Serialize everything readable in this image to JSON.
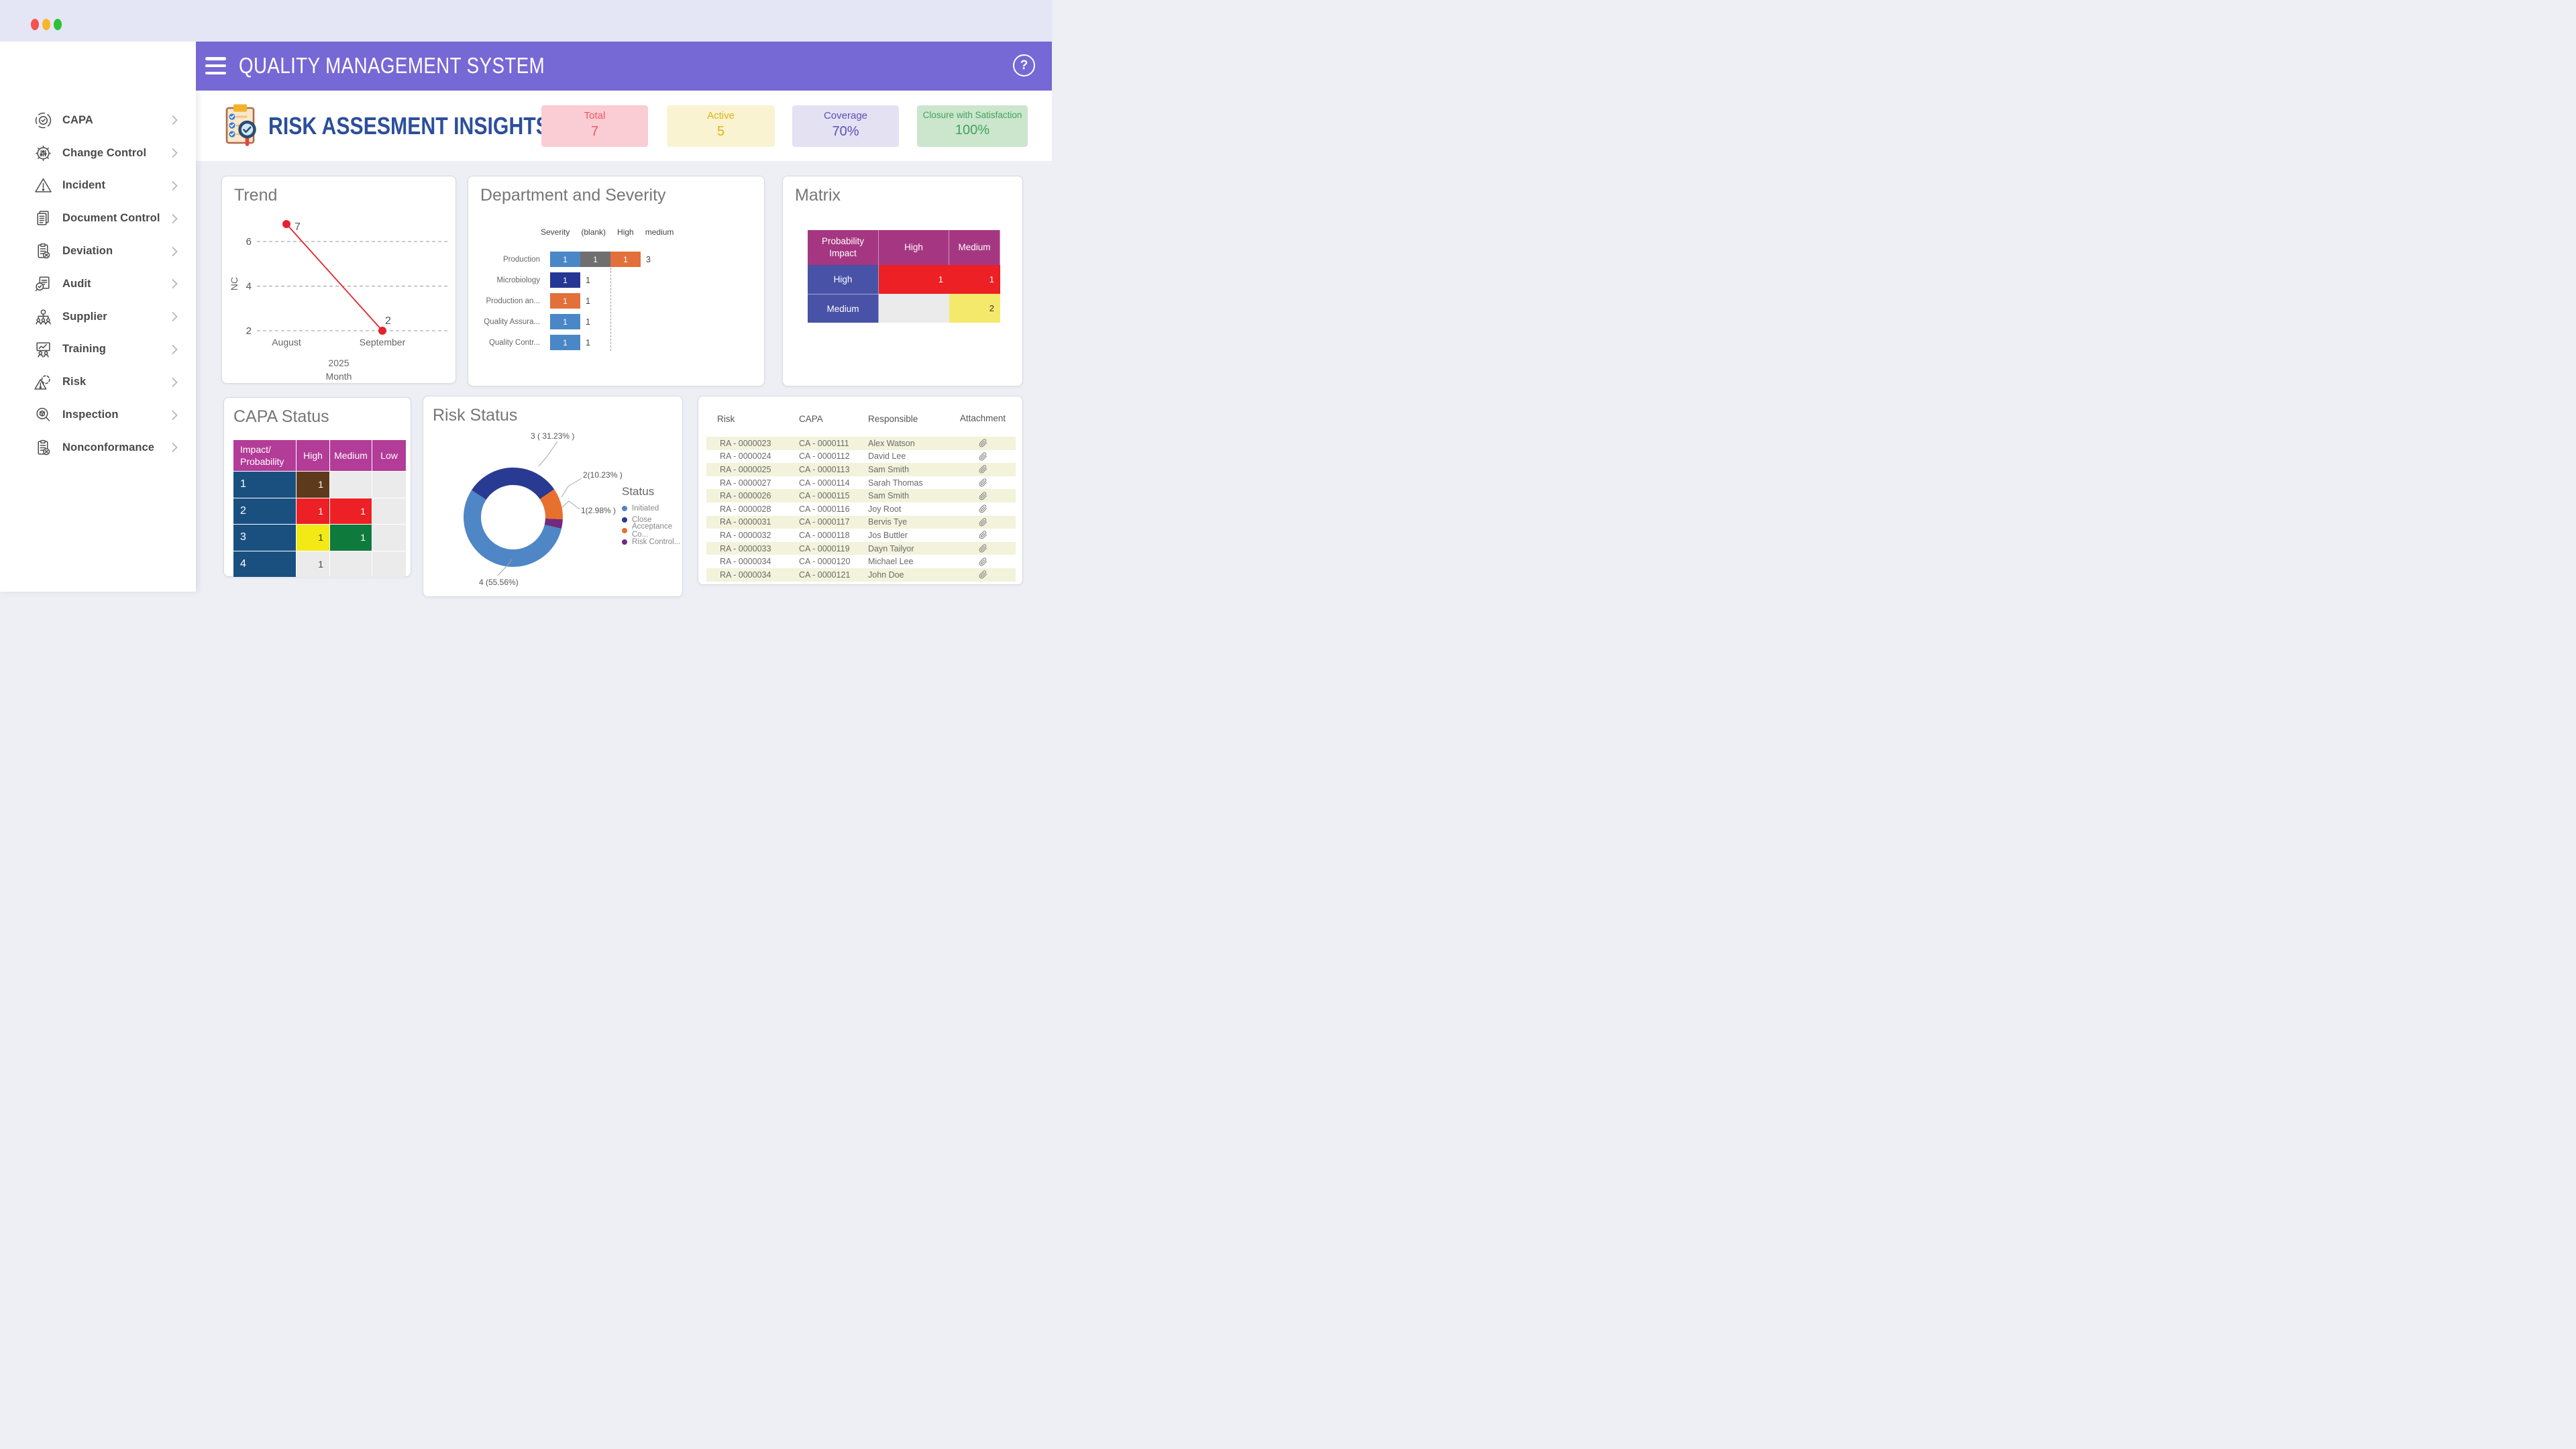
{
  "window": {
    "topbar_bg": "#e4e6f6",
    "traffic_lights": [
      {
        "name": "close",
        "color": "#f4534e"
      },
      {
        "name": "minimize",
        "color": "#f7b529"
      },
      {
        "name": "maximize",
        "color": "#2dc138"
      }
    ]
  },
  "app_header": {
    "title": "QUALITY MANAGEMENT SYSTEM",
    "bg": "#7668d5",
    "help_label": "?"
  },
  "sidebar": {
    "items": [
      {
        "label": "CAPA",
        "icon": "gear-check-icon"
      },
      {
        "label": "Change Control",
        "icon": "gear-sliders-icon"
      },
      {
        "label": "Incident",
        "icon": "warning-triangle-icon"
      },
      {
        "label": "Document Control",
        "icon": "documents-icon"
      },
      {
        "label": "Deviation",
        "icon": "clipboard-x-icon"
      },
      {
        "label": "Audit",
        "icon": "magnifier-document-icon"
      },
      {
        "label": "Supplier",
        "icon": "org-people-icon"
      },
      {
        "label": "Training",
        "icon": "presentation-icon"
      },
      {
        "label": "Risk",
        "icon": "gear-warning-icon"
      },
      {
        "label": "Inspection",
        "icon": "magnifier-box-icon"
      },
      {
        "label": "Nonconformance",
        "icon": "clipboard-x-icon"
      }
    ]
  },
  "insights_bar": {
    "title": "RISK ASSESMENT INSIGHTS",
    "title_color": "#2c4e9c",
    "kpis": [
      {
        "label": "Total",
        "value": "7",
        "bg": "#f9cdd3",
        "color": "#ef5666"
      },
      {
        "label": "Active",
        "value": "5",
        "bg": "#faf3d2",
        "color": "#dcb513"
      },
      {
        "label": "Coverage",
        "value": "70%",
        "bg": "#e4e1f3",
        "color": "#5a50b5"
      },
      {
        "label": "Closure with Satisfaction",
        "value": "100%",
        "bg": "#cbe6cd",
        "color": "#43a15c"
      }
    ]
  },
  "chart_data": [
    {
      "id": "trend",
      "type": "line",
      "title": "Trend",
      "categories": [
        "August",
        "September"
      ],
      "values": [
        7,
        2
      ],
      "year_label": "2025",
      "xlabel": "Month",
      "ylabel": "NC",
      "yticks": [
        2,
        4,
        6
      ],
      "ylim": [
        1.5,
        7.5
      ],
      "line_color": "#e8212c",
      "grid": "dashed horizontal"
    },
    {
      "id": "department_severity",
      "type": "stacked-bar-horizontal",
      "title": "Department and Severity",
      "legend_title": "Severity",
      "legend": [
        "(blank)",
        "High",
        "medium"
      ],
      "xlim": [
        0,
        3
      ],
      "reference_line_x": 2,
      "rows": [
        {
          "label": "Production",
          "total": 3,
          "segments": [
            {
              "value": 1,
              "color": "#4a87c7"
            },
            {
              "value": 1,
              "color": "#6f6f6f"
            },
            {
              "value": 1,
              "color": "#e2703a"
            }
          ]
        },
        {
          "label": "Microbiology",
          "total": 1,
          "segments": [
            {
              "value": 1,
              "color": "#263693"
            }
          ]
        },
        {
          "label": "Production an...",
          "total": 1,
          "segments": [
            {
              "value": 1,
              "color": "#e2703a"
            }
          ]
        },
        {
          "label": "Quality Assura...",
          "total": 1,
          "segments": [
            {
              "value": 1,
              "color": "#4a87c7"
            }
          ]
        },
        {
          "label": "Quality Contr...",
          "total": 1,
          "segments": [
            {
              "value": 1,
              "color": "#4a87c7"
            }
          ]
        }
      ]
    },
    {
      "id": "matrix",
      "type": "table",
      "title": "Matrix",
      "header": {
        "corner": "Probability Impact",
        "cols": [
          "High",
          "Medium"
        ],
        "bg": "#a53782"
      },
      "row_label_bg": "#4852a6",
      "rows": [
        {
          "label": "High",
          "cells": [
            {
              "value": "1",
              "bg": "#ec2025",
              "color": "#ffffff"
            },
            {
              "value": "1",
              "bg": "#ec2025",
              "color": "#ffffff"
            }
          ]
        },
        {
          "label": "Medium",
          "cells": [
            {
              "value": "",
              "bg": "#ebebeb",
              "color": "#333333"
            },
            {
              "value": "2",
              "bg": "#f5e96b",
              "color": "#333333"
            }
          ]
        }
      ]
    },
    {
      "id": "capa_status",
      "type": "table",
      "title": "CAPA Status",
      "header": {
        "corner": "Impact/ Probability",
        "cols": [
          "High",
          "Medium",
          "Low"
        ],
        "bg": "#b23c98"
      },
      "row_label_bg": "#1a5080",
      "rows": [
        {
          "label": "1",
          "cells": [
            {
              "value": "1",
              "bg": "#5e3a1c",
              "color": "#ffffff"
            },
            {
              "value": "",
              "bg": "#ebebeb",
              "color": "#444444"
            },
            {
              "value": "",
              "bg": "#ebebeb",
              "color": "#444444"
            }
          ]
        },
        {
          "label": "2",
          "cells": [
            {
              "value": "1",
              "bg": "#ec2025",
              "color": "#ffffff"
            },
            {
              "value": "1",
              "bg": "#ec2025",
              "color": "#ffffff"
            },
            {
              "value": "",
              "bg": "#ebebeb",
              "color": "#444444"
            }
          ]
        },
        {
          "label": "3",
          "cells": [
            {
              "value": "1",
              "bg": "#f3ea15",
              "color": "#333333"
            },
            {
              "value": "1",
              "bg": "#0e7b3d",
              "color": "#ffffff"
            },
            {
              "value": "",
              "bg": "#ebebeb",
              "color": "#444444"
            }
          ]
        },
        {
          "label": "4",
          "cells": [
            {
              "value": "1",
              "bg": "#ebebeb",
              "color": "#444444"
            },
            {
              "value": "",
              "bg": "#ebebeb",
              "color": "#444444"
            },
            {
              "value": "",
              "bg": "#ebebeb",
              "color": "#444444"
            }
          ]
        }
      ]
    },
    {
      "id": "risk_status",
      "type": "pie",
      "donut": true,
      "title": "Risk Status",
      "legend_title": "Status",
      "legend_position": "right",
      "slices": [
        {
          "label": "Initiated",
          "value": 4,
          "pct": 55.56,
          "color": "#4e86c6",
          "callout": "4 (55.56%)"
        },
        {
          "label": "Close",
          "value": 3,
          "pct": 31.23,
          "color": "#283a92",
          "callout": "3 ( 31.23% )"
        },
        {
          "label": "Acceptance Co...",
          "value": 2,
          "pct": 10.23,
          "color": "#e8702f",
          "callout": "2(10.23% )"
        },
        {
          "label": "Risk Control...",
          "value": 1,
          "pct": 2.98,
          "color": "#722a7d",
          "callout": "1(2.98% )"
        }
      ]
    },
    {
      "id": "risk_table",
      "type": "table",
      "headers": [
        "Risk",
        "CAPA",
        "Responsible",
        "Attachment"
      ],
      "row_alt_bg": "#f3f3dc",
      "attachment_icon": "paperclip-icon",
      "rows": [
        [
          "RA - 0000023",
          "CA - 0000111",
          "Alex Watson"
        ],
        [
          "RA - 0000024",
          "CA - 0000112",
          "David Lee"
        ],
        [
          "RA - 0000025",
          "CA - 0000113",
          "Sam Smith"
        ],
        [
          "RA - 0000027",
          "CA - 0000114",
          "Sarah Thomas"
        ],
        [
          "RA - 0000026",
          "CA - 0000115",
          "Sam Smith"
        ],
        [
          "RA - 0000028",
          "CA - 0000116",
          "Joy Root"
        ],
        [
          "RA - 0000031",
          "CA - 0000117",
          "Bervis Tye"
        ],
        [
          "RA - 0000032",
          "CA - 0000118",
          "Jos Buttler"
        ],
        [
          "RA - 0000033",
          "CA - 0000119",
          "Dayn Tailyor"
        ],
        [
          "RA - 0000034",
          "CA - 0000120",
          "Michael Lee"
        ],
        [
          "RA - 0000034",
          "CA - 0000121",
          "John Doe"
        ]
      ]
    }
  ]
}
